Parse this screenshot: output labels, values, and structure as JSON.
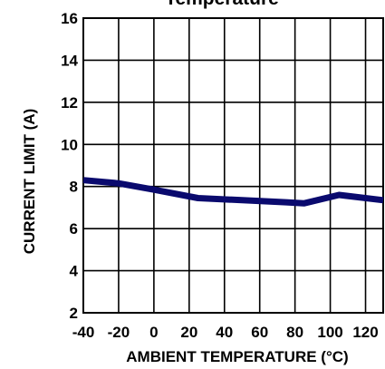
{
  "chart_data": {
    "type": "line",
    "title": "Temperature",
    "xlabel": "AMBIENT TEMPERATURE (°C)",
    "ylabel": "CURRENT LIMIT (A)",
    "xlim": [
      -40,
      130
    ],
    "ylim": [
      2,
      16
    ],
    "x_ticks": [
      -40,
      -20,
      0,
      20,
      40,
      60,
      80,
      100,
      120
    ],
    "y_ticks": [
      2,
      4,
      6,
      8,
      10,
      12,
      14,
      16
    ],
    "grid": true,
    "legend": "none",
    "series": [
      {
        "color": "#0a0a6e",
        "x": [
          -40,
          -20,
          0,
          25,
          50,
          75,
          85,
          105,
          130
        ],
        "y": [
          8.3,
          8.15,
          7.85,
          7.45,
          7.35,
          7.25,
          7.2,
          7.6,
          7.35
        ]
      }
    ]
  }
}
